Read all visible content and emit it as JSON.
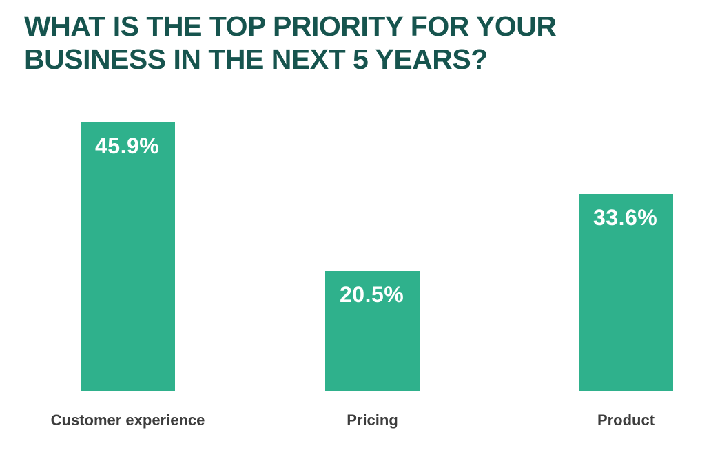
{
  "title": {
    "line1": "WHAT IS THE TOP PRIORITY FOR YOUR",
    "line2": "BUSINESS IN THE NEXT 5 YEARS?"
  },
  "colors": {
    "background": "#ffffff",
    "title_text": "#16544e",
    "bar_fill": "#2fb18c",
    "value_label_text": "#ffffff",
    "category_label_text": "#3d3d3d"
  },
  "chart_data": {
    "type": "bar",
    "title": "WHAT IS THE TOP PRIORITY FOR YOUR BUSINESS IN THE NEXT 5 YEARS?",
    "categories": [
      "Customer experience",
      "Pricing",
      "Product"
    ],
    "values": [
      45.9,
      20.5,
      33.6
    ],
    "value_labels": [
      "45.9%",
      "20.5%",
      "33.6%"
    ],
    "unit": "%",
    "xlabel": "",
    "ylabel": "",
    "ylim": [
      0,
      50
    ],
    "grid": false,
    "legend": false,
    "axes_visible": false,
    "bar_color": "#2fb18c",
    "value_label_position": "inside-top-left",
    "orientation": "vertical"
  }
}
